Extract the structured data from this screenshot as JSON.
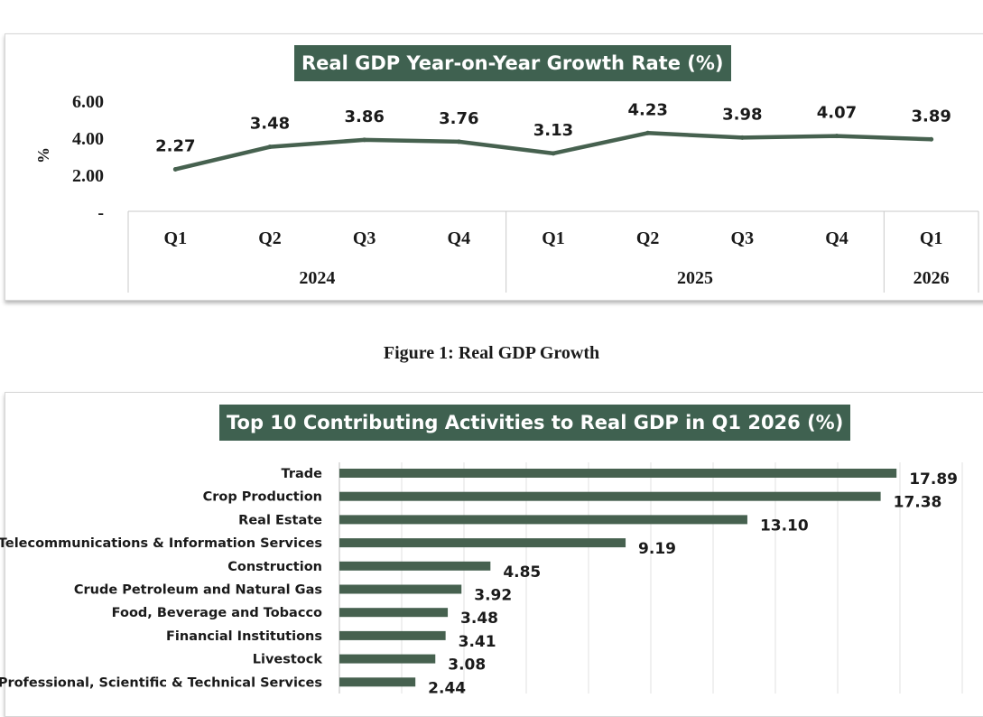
{
  "caption": "Figure 1: Real GDP Growth",
  "colors": {
    "accent": "#3f6150",
    "line": "#46614f",
    "bar": "#46614f"
  },
  "chart_data": [
    {
      "type": "line",
      "title": "Real GDP Year-on-Year Growth Rate (%)",
      "ylabel": "%",
      "yticks": [
        "6.00",
        "4.00",
        "2.00",
        "-"
      ],
      "ylim": [
        0,
        6
      ],
      "grid": false,
      "x": [
        "Q1",
        "Q2",
        "Q3",
        "Q4",
        "Q1",
        "Q2",
        "Q3",
        "Q4",
        "Q1"
      ],
      "groups": [
        {
          "label": "2024",
          "count": 4
        },
        {
          "label": "2025",
          "count": 4
        },
        {
          "label": "2026",
          "count": 1
        }
      ],
      "values": [
        2.27,
        3.48,
        3.86,
        3.76,
        3.13,
        4.23,
        3.98,
        4.07,
        3.89
      ],
      "value_labels": [
        "2.27",
        "3.48",
        "3.86",
        "3.76",
        "3.13",
        "4.23",
        "3.98",
        "4.07",
        "3.89"
      ]
    },
    {
      "type": "bar",
      "orientation": "horizontal",
      "title": "Top 10 Contributing Activities to Real GDP in Q1 2026 (%)",
      "grid": true,
      "xlim": [
        0,
        20
      ],
      "categories": [
        "Trade",
        "Crop Production",
        "Real Estate",
        "Telecommunications & Information Services",
        "Construction",
        "Crude Petroleum and Natural Gas",
        "Food, Beverage and Tobacco",
        "Financial Institutions",
        "Livestock",
        "Professional, Scientific & Technical Services"
      ],
      "values": [
        17.89,
        17.38,
        13.1,
        9.19,
        4.85,
        3.92,
        3.48,
        3.41,
        3.08,
        2.44
      ],
      "value_labels": [
        "17.89",
        "17.38",
        "13.10",
        "9.19",
        "4.85",
        "3.92",
        "3.48",
        "3.41",
        "3.08",
        "2.44"
      ]
    }
  ]
}
